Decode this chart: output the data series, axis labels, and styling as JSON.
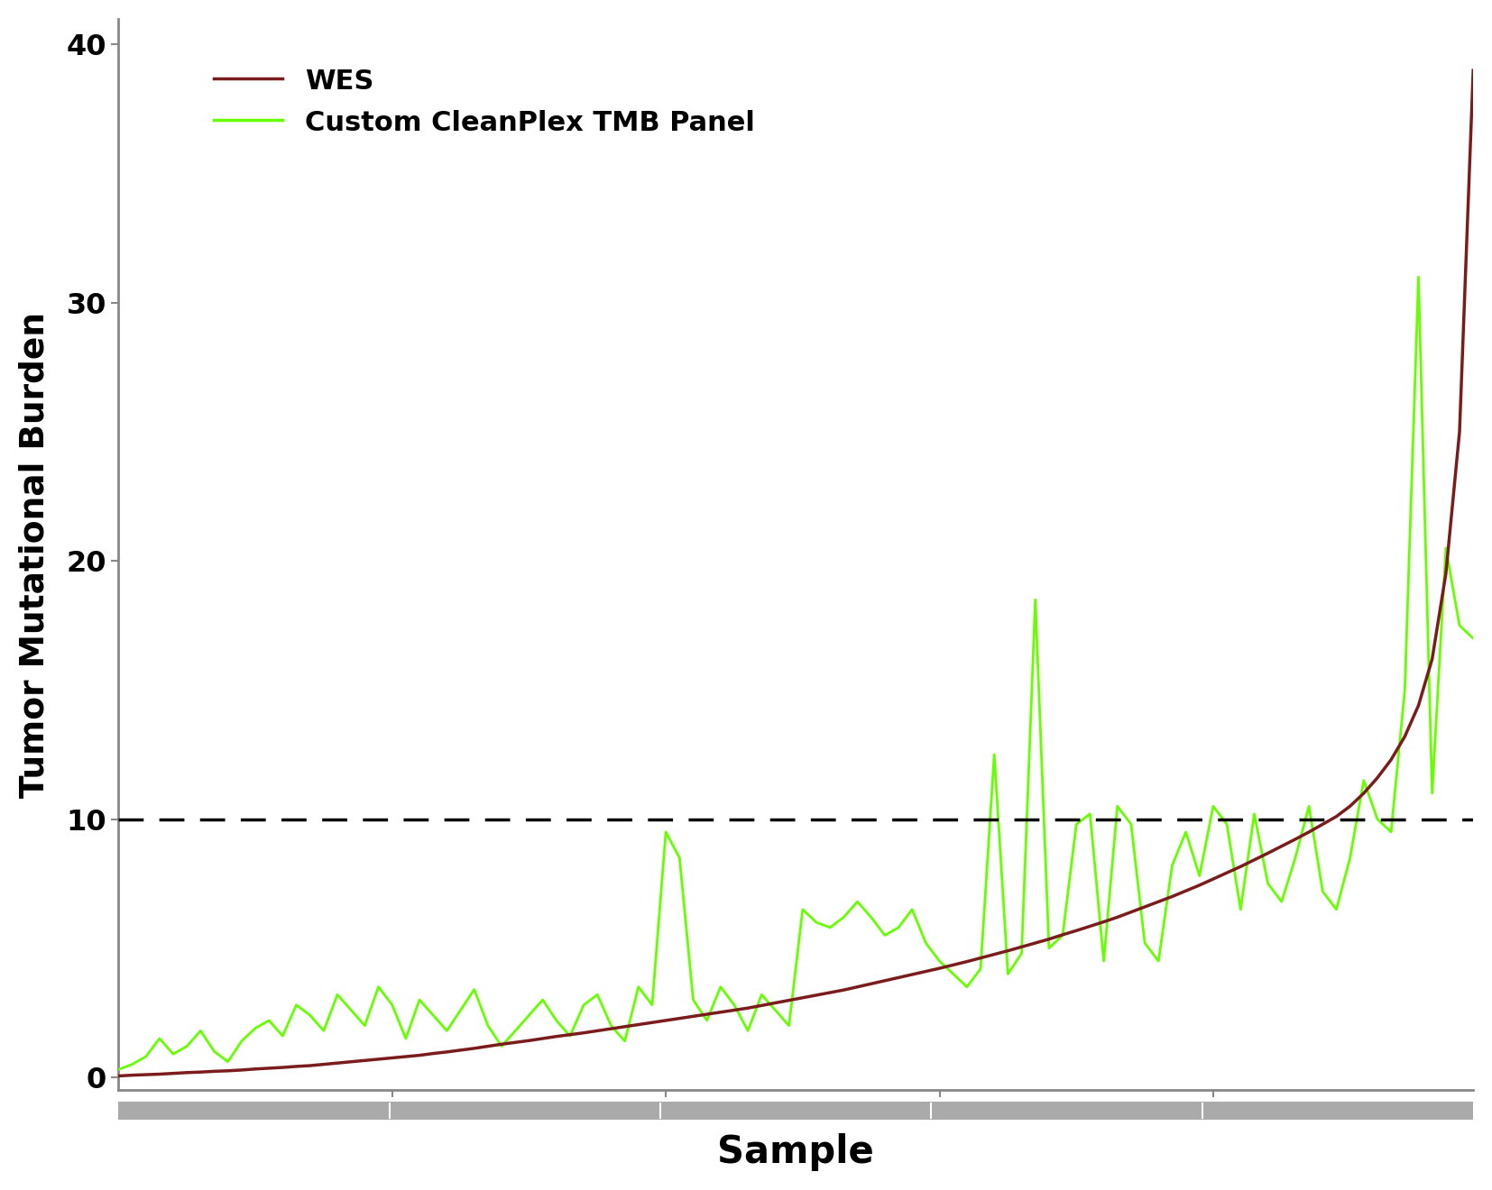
{
  "xlabel": "Sample",
  "ylabel": "Tumor Mutational Burden",
  "ylim": [
    -0.5,
    41
  ],
  "yticks": [
    0,
    10,
    20,
    30,
    40
  ],
  "dashed_line_y": 10,
  "wes_color": "#7B1C1C",
  "panel_color": "#66FF00",
  "background_color": "#FFFFFF",
  "legend_labels": [
    "WES",
    "Custom CleanPlex TMB Panel"
  ],
  "wes_values": [
    0.05,
    0.08,
    0.1,
    0.12,
    0.15,
    0.18,
    0.2,
    0.23,
    0.25,
    0.28,
    0.32,
    0.35,
    0.38,
    0.42,
    0.45,
    0.5,
    0.55,
    0.6,
    0.65,
    0.7,
    0.75,
    0.8,
    0.85,
    0.92,
    0.98,
    1.05,
    1.12,
    1.2,
    1.28,
    1.35,
    1.42,
    1.5,
    1.58,
    1.65,
    1.72,
    1.8,
    1.88,
    1.96,
    2.04,
    2.12,
    2.2,
    2.28,
    2.36,
    2.44,
    2.52,
    2.6,
    2.68,
    2.78,
    2.88,
    2.98,
    3.08,
    3.18,
    3.28,
    3.38,
    3.5,
    3.62,
    3.74,
    3.86,
    3.98,
    4.1,
    4.22,
    4.35,
    4.48,
    4.62,
    4.76,
    4.9,
    5.05,
    5.2,
    5.35,
    5.52,
    5.68,
    5.85,
    6.02,
    6.2,
    6.4,
    6.6,
    6.8,
    7.0,
    7.22,
    7.44,
    7.68,
    7.92,
    8.16,
    8.42,
    8.68,
    8.95,
    9.22,
    9.5,
    9.8,
    10.1,
    10.5,
    11.0,
    11.6,
    12.3,
    13.2,
    14.4,
    16.2,
    19.5,
    25.0,
    39.0
  ],
  "panel_values": [
    0.3,
    0.5,
    0.8,
    1.5,
    0.9,
    1.2,
    1.8,
    1.0,
    0.6,
    1.4,
    1.9,
    2.2,
    1.6,
    2.8,
    2.4,
    1.8,
    3.2,
    2.6,
    2.0,
    3.5,
    2.8,
    1.5,
    3.0,
    2.4,
    1.8,
    2.6,
    3.4,
    2.0,
    1.2,
    1.8,
    2.4,
    3.0,
    2.2,
    1.6,
    2.8,
    3.2,
    2.0,
    1.4,
    3.5,
    2.8,
    9.5,
    8.5,
    3.0,
    2.2,
    3.5,
    2.8,
    1.8,
    3.2,
    2.6,
    2.0,
    6.5,
    6.0,
    5.8,
    6.2,
    6.8,
    6.2,
    5.5,
    5.8,
    6.5,
    5.2,
    4.5,
    4.0,
    3.5,
    4.2,
    12.5,
    4.0,
    4.8,
    18.5,
    5.0,
    5.5,
    9.8,
    10.2,
    4.5,
    10.5,
    9.8,
    5.2,
    4.5,
    8.2,
    9.5,
    7.8,
    10.5,
    9.8,
    6.5,
    10.2,
    7.5,
    6.8,
    8.5,
    10.5,
    7.2,
    6.5,
    8.5,
    11.5,
    10.0,
    9.5,
    15.0,
    31.0,
    11.0,
    20.5,
    17.5,
    17.0
  ]
}
